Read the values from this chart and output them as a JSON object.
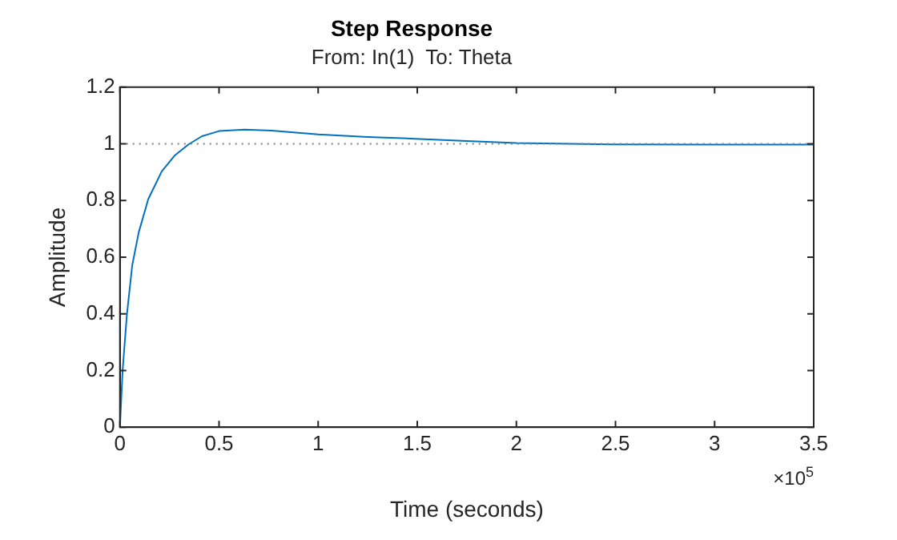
{
  "chart_data": {
    "type": "line",
    "title": "Step Response",
    "subtitle": "From: In(1)  To: Theta",
    "xlabel": "Time (seconds)",
    "ylabel": "Amplitude",
    "x": [
      0,
      0.0135,
      0.035,
      0.062,
      0.095,
      0.143,
      0.211,
      0.278,
      0.346,
      0.414,
      0.5,
      0.63,
      0.765,
      1.0,
      1.25,
      1.49,
      1.75,
      2.0,
      2.5,
      3.0,
      3.5
    ],
    "series": [
      {
        "color": "#0072bd",
        "values": [
          0,
          0.2,
          0.396,
          0.571,
          0.688,
          0.805,
          0.903,
          0.96,
          0.998,
          1.027,
          1.045,
          1.05,
          1.047,
          1.033,
          1.024,
          1.018,
          1.01,
          1.003,
          0.998,
          0.997,
          0.997
        ]
      }
    ],
    "xlim": [
      0,
      3.5
    ],
    "xticks": [
      0,
      0.5,
      1,
      1.5,
      2,
      2.5,
      3,
      3.5
    ],
    "ylim": [
      0,
      1.2
    ],
    "yticks": [
      0,
      0.2,
      0.4,
      0.6,
      0.8,
      1,
      1.2
    ],
    "ref_lines": [
      {
        "axis": "y",
        "value": 1,
        "color": "#808080",
        "line_style": "dotted"
      }
    ],
    "annotations": [
      "×10$^{5}$"
    ],
    "grid": false,
    "legend": false,
    "marker": "none",
    "line_style": "solid"
  }
}
